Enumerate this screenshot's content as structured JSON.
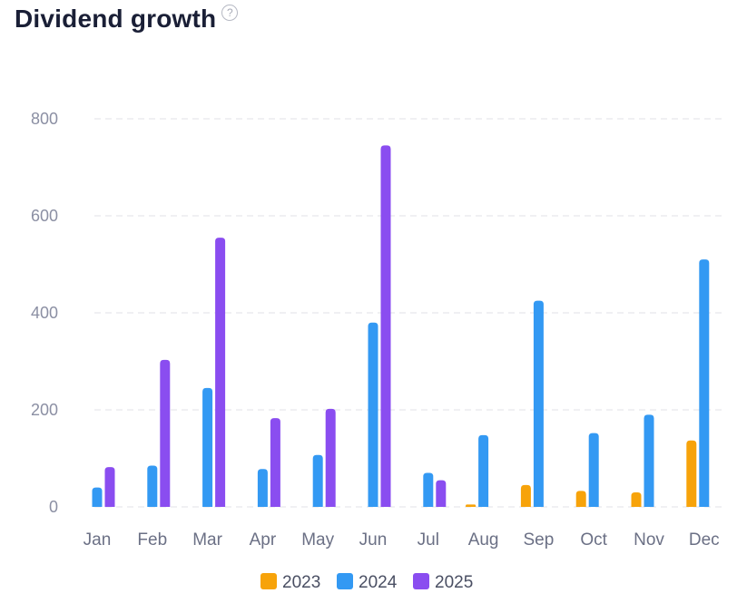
{
  "header": {
    "title": "Dividend growth",
    "help_icon": "question-circle-icon"
  },
  "chart_data": {
    "type": "bar",
    "categories": [
      "Jan",
      "Feb",
      "Mar",
      "Apr",
      "May",
      "Jun",
      "Jul",
      "Aug",
      "Sep",
      "Oct",
      "Nov",
      "Dec"
    ],
    "series": [
      {
        "name": "2023",
        "color": "#f7a30a",
        "values": [
          0,
          0,
          0,
          0,
          0,
          0,
          0,
          5,
          45,
          33,
          30,
          137
        ]
      },
      {
        "name": "2024",
        "color": "#3399f3",
        "values": [
          40,
          85,
          245,
          78,
          107,
          380,
          70,
          148,
          425,
          152,
          190,
          510
        ]
      },
      {
        "name": "2025",
        "color": "#8a4df0",
        "values": [
          82,
          303,
          555,
          183,
          202,
          745,
          55,
          0,
          0,
          0,
          0,
          0
        ]
      }
    ],
    "yticks": [
      0,
      200,
      400,
      600,
      800
    ],
    "ylim": [
      0,
      800
    ],
    "grid": true,
    "legend": "bottom-center",
    "title": "Dividend growth",
    "xlabel": "",
    "ylabel": ""
  }
}
